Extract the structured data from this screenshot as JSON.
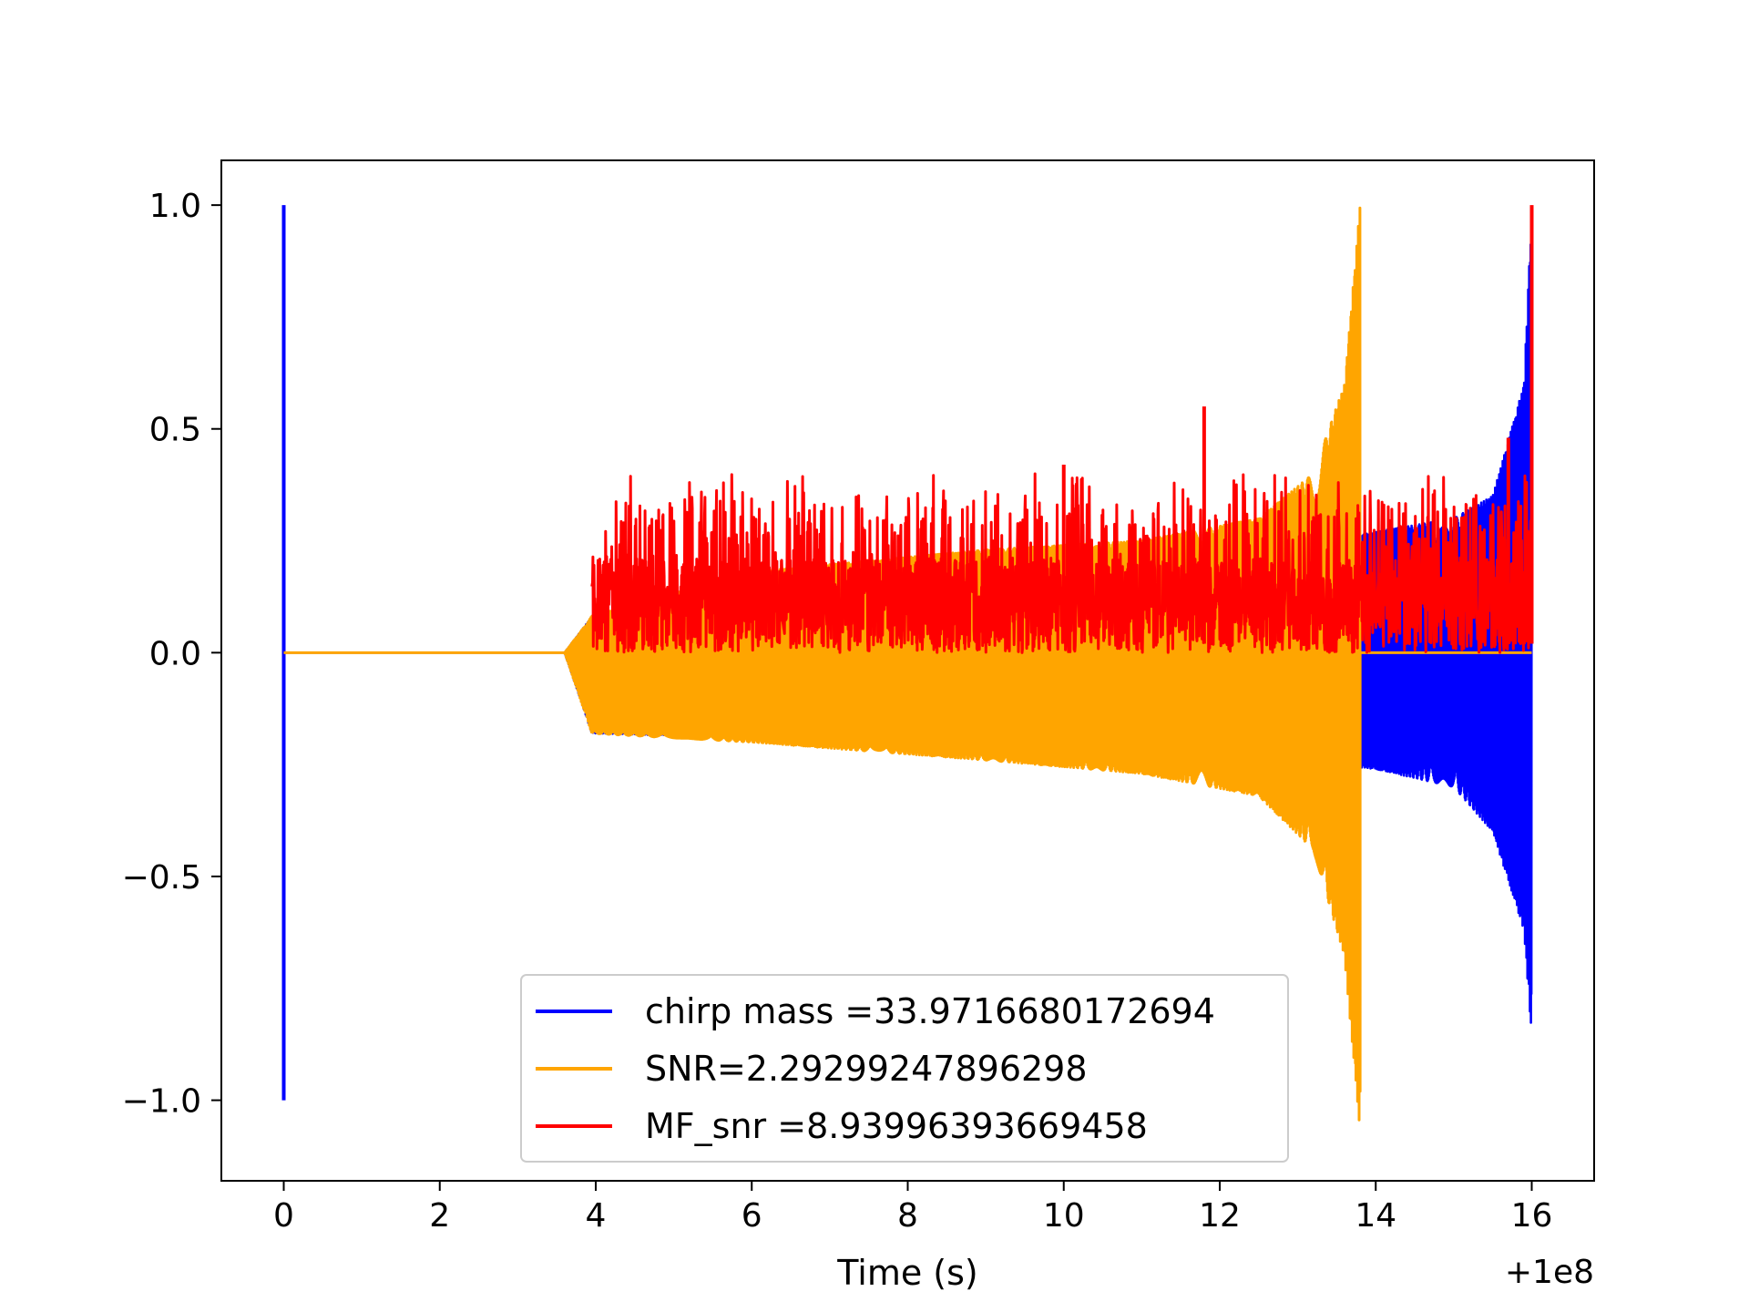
{
  "chart_data": {
    "type": "line",
    "xlabel": "Time (s)",
    "ylabel": "",
    "x_offset_label": "+1e8",
    "xlim": [
      -0.8,
      16.8
    ],
    "ylim": [
      -1.18,
      1.1
    ],
    "xticks": [
      0,
      2,
      4,
      6,
      8,
      10,
      12,
      14,
      16
    ],
    "xtick_labels": [
      "0",
      "2",
      "4",
      "6",
      "8",
      "10",
      "12",
      "14",
      "16"
    ],
    "yticks": [
      1.0,
      0.5,
      0.0,
      -0.5,
      -1.0
    ],
    "ytick_labels": [
      "1.0",
      "0.5",
      "0.0",
      "−0.5",
      "−1.0"
    ],
    "grid": false,
    "legend_position": "bottom-center",
    "series": [
      {
        "name": "chirp mass =33.9716680172694",
        "color": "#0000ff",
        "description_points": {
          "spike_at_x": 0.0,
          "spike_range": [
            -1.0,
            1.0
          ],
          "zero_segment": [
            0.0,
            3.6
          ],
          "oscillation_start": 3.6,
          "oscillation_end": 16.0,
          "upper_envelope": [
            [
              4.0,
              0.08
            ],
            [
              8.0,
              0.15
            ],
            [
              12.0,
              0.2
            ],
            [
              14.0,
              0.27
            ],
            [
              15.0,
              0.3
            ],
            [
              15.5,
              0.35
            ],
            [
              15.9,
              0.6
            ],
            [
              16.0,
              1.0
            ]
          ],
          "lower_envelope": [
            [
              4.0,
              -0.18
            ],
            [
              8.0,
              -0.2
            ],
            [
              12.0,
              -0.22
            ],
            [
              14.0,
              -0.26
            ],
            [
              15.0,
              -0.3
            ],
            [
              15.5,
              -0.4
            ],
            [
              15.9,
              -0.62
            ],
            [
              16.0,
              -0.86
            ]
          ]
        }
      },
      {
        "name": "SNR=2.29299247896298",
        "color": "#ffa500",
        "description_points": {
          "zero_segment": [
            0.0,
            3.6
          ],
          "oscillation_start": 3.6,
          "oscillation_end": 13.8,
          "upper_envelope": [
            [
              3.9,
              0.08
            ],
            [
              6.0,
              0.18
            ],
            [
              9.0,
              0.23
            ],
            [
              11.0,
              0.25
            ],
            [
              12.5,
              0.3
            ],
            [
              13.2,
              0.4
            ],
            [
              13.6,
              0.6
            ],
            [
              13.8,
              1.0
            ]
          ],
          "lower_envelope": [
            [
              3.9,
              -0.18
            ],
            [
              6.0,
              -0.2
            ],
            [
              9.0,
              -0.24
            ],
            [
              11.0,
              -0.27
            ],
            [
              12.5,
              -0.32
            ],
            [
              13.2,
              -0.44
            ],
            [
              13.6,
              -0.68
            ],
            [
              13.8,
              -1.07
            ]
          ],
          "after_end_value": 0.0
        }
      },
      {
        "name": "MF_snr =8.93996393669458",
        "color": "#ff0000",
        "description_points": {
          "start": 3.95,
          "end": 16.0,
          "baseline_range": [
            0.0,
            0.3
          ],
          "notable_peaks": [
            [
              11.8,
              0.55
            ],
            [
              10.0,
              0.42
            ],
            [
              16.0,
              1.0
            ],
            [
              15.7,
              0.48
            ]
          ]
        }
      }
    ]
  }
}
